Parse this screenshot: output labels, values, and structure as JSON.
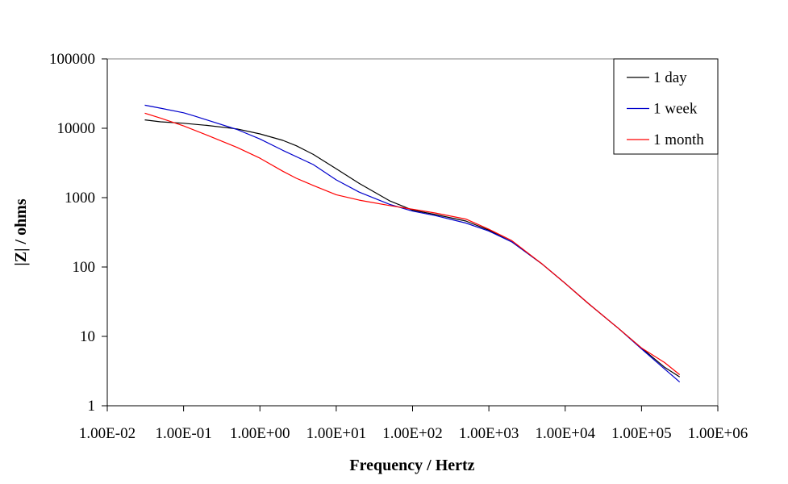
{
  "chart_data": {
    "type": "line",
    "title": "",
    "xlabel": "Frequency / Hertz",
    "ylabel": "|Z| / ohms",
    "x_scale": "log",
    "y_scale": "log",
    "xlim": [
      0.01,
      1000000
    ],
    "ylim": [
      1,
      100000
    ],
    "x_tick_labels": [
      "1.00E-02",
      "1.00E-01",
      "1.00E+00",
      "1.00E+01",
      "1.00E+02",
      "1.00E+03",
      "1.00E+04",
      "1.00E+05",
      "1.00E+06"
    ],
    "y_tick_labels": [
      "1",
      "10",
      "100",
      "1000",
      "10000",
      "100000"
    ],
    "grid": false,
    "legend_position": "top-right",
    "series": [
      {
        "name": "1 day",
        "color": "#000000",
        "points": [
          [
            0.031,
            13200
          ],
          [
            0.05,
            12400
          ],
          [
            0.1,
            11800
          ],
          [
            0.2,
            11000
          ],
          [
            0.5,
            9800
          ],
          [
            1,
            8300
          ],
          [
            2,
            6700
          ],
          [
            3,
            5600
          ],
          [
            5,
            4200
          ],
          [
            10,
            2600
          ],
          [
            20,
            1600
          ],
          [
            50,
            900
          ],
          [
            100,
            660
          ],
          [
            200,
            570
          ],
          [
            500,
            460
          ],
          [
            1000,
            340
          ],
          [
            2000,
            230
          ],
          [
            5000,
            110
          ],
          [
            10000,
            58
          ],
          [
            20000,
            30
          ],
          [
            50000,
            13
          ],
          [
            100000,
            6.8
          ],
          [
            200000,
            3.6
          ],
          [
            316000,
            2.6
          ]
        ]
      },
      {
        "name": "1 week",
        "color": "#0000cc",
        "points": [
          [
            0.031,
            21500
          ],
          [
            0.05,
            19500
          ],
          [
            0.1,
            16700
          ],
          [
            0.14,
            15000
          ],
          [
            0.2,
            13200
          ],
          [
            0.5,
            9600
          ],
          [
            1,
            7000
          ],
          [
            2,
            4800
          ],
          [
            5,
            3000
          ],
          [
            10,
            1800
          ],
          [
            20,
            1200
          ],
          [
            50,
            800
          ],
          [
            100,
            640
          ],
          [
            200,
            550
          ],
          [
            500,
            430
          ],
          [
            1000,
            330
          ],
          [
            2000,
            230
          ],
          [
            5000,
            110
          ],
          [
            10000,
            58
          ],
          [
            20000,
            30
          ],
          [
            50000,
            13
          ],
          [
            100000,
            6.6
          ],
          [
            200000,
            3.4
          ],
          [
            316000,
            2.2
          ]
        ]
      },
      {
        "name": "1 month",
        "color": "#ff0000",
        "points": [
          [
            0.031,
            16500
          ],
          [
            0.05,
            14000
          ],
          [
            0.1,
            10800
          ],
          [
            0.2,
            8000
          ],
          [
            0.5,
            5300
          ],
          [
            1,
            3700
          ],
          [
            2,
            2400
          ],
          [
            3,
            1900
          ],
          [
            5,
            1500
          ],
          [
            10,
            1100
          ],
          [
            20,
            920
          ],
          [
            50,
            770
          ],
          [
            100,
            680
          ],
          [
            200,
            600
          ],
          [
            500,
            490
          ],
          [
            1000,
            350
          ],
          [
            2000,
            240
          ],
          [
            5000,
            110
          ],
          [
            10000,
            58
          ],
          [
            20000,
            30
          ],
          [
            50000,
            13
          ],
          [
            100000,
            6.8
          ],
          [
            200000,
            4.2
          ],
          [
            316000,
            2.8
          ]
        ]
      }
    ]
  }
}
